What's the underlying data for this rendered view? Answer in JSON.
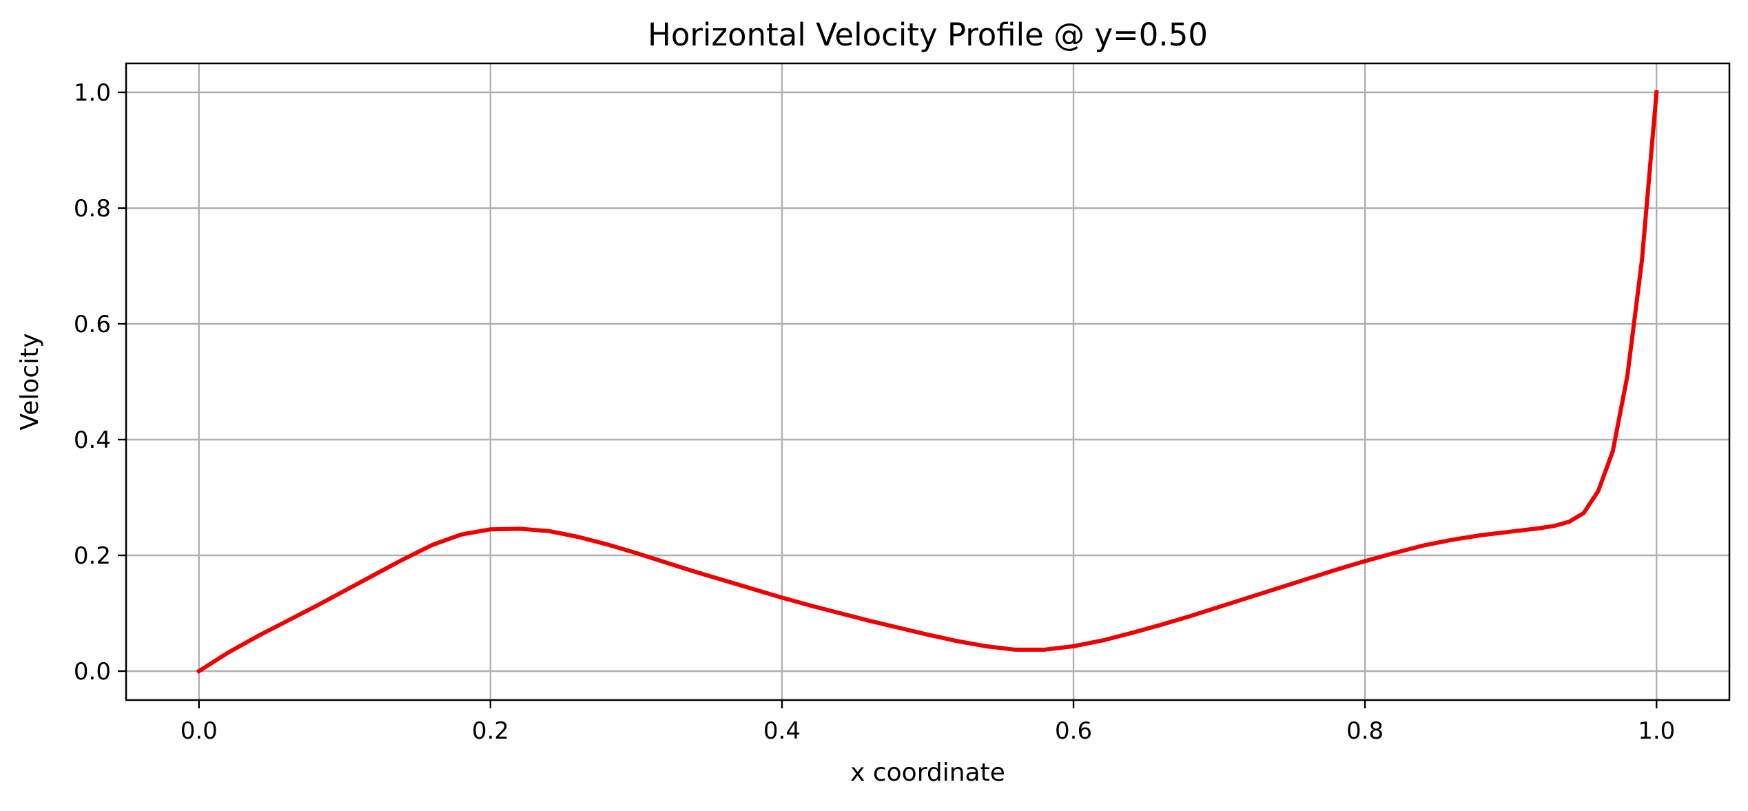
{
  "chart_data": {
    "type": "line",
    "title": "Horizontal Velocity Profile @ y=0.50",
    "xlabel": "x coordinate",
    "ylabel": "Velocity",
    "xlim": [
      -0.05,
      1.05
    ],
    "ylim": [
      -0.05,
      1.05
    ],
    "xticks": [
      "0.0",
      "0.2",
      "0.4",
      "0.6",
      "0.8",
      "1.0"
    ],
    "yticks": [
      "0.0",
      "0.2",
      "0.4",
      "0.6",
      "0.8",
      "1.0"
    ],
    "grid": true,
    "legend": "none",
    "series": [
      {
        "color": "#ee0000",
        "x": [
          0.0,
          0.02,
          0.04,
          0.06,
          0.08,
          0.1,
          0.12,
          0.14,
          0.16,
          0.18,
          0.2,
          0.22,
          0.24,
          0.26,
          0.28,
          0.3,
          0.32,
          0.34,
          0.36,
          0.38,
          0.4,
          0.42,
          0.44,
          0.46,
          0.48,
          0.5,
          0.52,
          0.54,
          0.56,
          0.58,
          0.6,
          0.62,
          0.64,
          0.66,
          0.68,
          0.7,
          0.72,
          0.74,
          0.76,
          0.78,
          0.8,
          0.82,
          0.84,
          0.86,
          0.88,
          0.9,
          0.92,
          0.93,
          0.94,
          0.95,
          0.96,
          0.97,
          0.98,
          0.99,
          1.0
        ],
        "y": [
          0.0,
          0.032,
          0.06,
          0.086,
          0.112,
          0.139,
          0.166,
          0.193,
          0.218,
          0.236,
          0.245,
          0.246,
          0.242,
          0.232,
          0.219,
          0.204,
          0.188,
          0.172,
          0.157,
          0.142,
          0.127,
          0.113,
          0.1,
          0.087,
          0.075,
          0.063,
          0.052,
          0.043,
          0.037,
          0.037,
          0.043,
          0.053,
          0.066,
          0.08,
          0.095,
          0.111,
          0.127,
          0.143,
          0.159,
          0.175,
          0.19,
          0.204,
          0.217,
          0.227,
          0.235,
          0.241,
          0.247,
          0.251,
          0.258,
          0.273,
          0.311,
          0.38,
          0.51,
          0.71,
          1.0
        ]
      }
    ]
  }
}
